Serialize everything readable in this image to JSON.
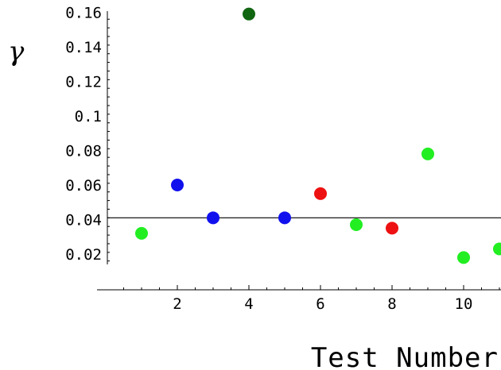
{
  "chart_data": {
    "type": "scatter",
    "xlabel": "Test Number",
    "ylabel": "γ",
    "xlim": [
      0,
      11
    ],
    "ylim": [
      0.014,
      0.16
    ],
    "x_ticks": [
      2,
      4,
      6,
      8,
      10
    ],
    "x_tick_labels": [
      "2",
      "4",
      "6",
      "8",
      "10"
    ],
    "y_ticks": [
      0.02,
      0.04,
      0.06,
      0.08,
      0.1,
      0.12,
      0.14,
      0.16
    ],
    "y_tick_labels": [
      "0.02",
      "0.04",
      "0.06",
      "0.08",
      "0.1",
      "0.12",
      "0.14",
      "0.16"
    ],
    "reference_line": {
      "y": 0.041
    },
    "grid": false,
    "points": [
      {
        "x": 1,
        "y": 0.032,
        "color": "#22ee22"
      },
      {
        "x": 2,
        "y": 0.06,
        "color": "#1111ee"
      },
      {
        "x": 3,
        "y": 0.041,
        "color": "#1111ee"
      },
      {
        "x": 4,
        "y": 0.159,
        "color": "#116611"
      },
      {
        "x": 5,
        "y": 0.041,
        "color": "#1111ee"
      },
      {
        "x": 6,
        "y": 0.055,
        "color": "#ee1111"
      },
      {
        "x": 7,
        "y": 0.037,
        "color": "#22ee22"
      },
      {
        "x": 8,
        "y": 0.035,
        "color": "#ee1111"
      },
      {
        "x": 9,
        "y": 0.078,
        "color": "#22ee22"
      },
      {
        "x": 10,
        "y": 0.018,
        "color": "#22ee22"
      },
      {
        "x": 11,
        "y": 0.023,
        "color": "#22ee22"
      }
    ]
  }
}
